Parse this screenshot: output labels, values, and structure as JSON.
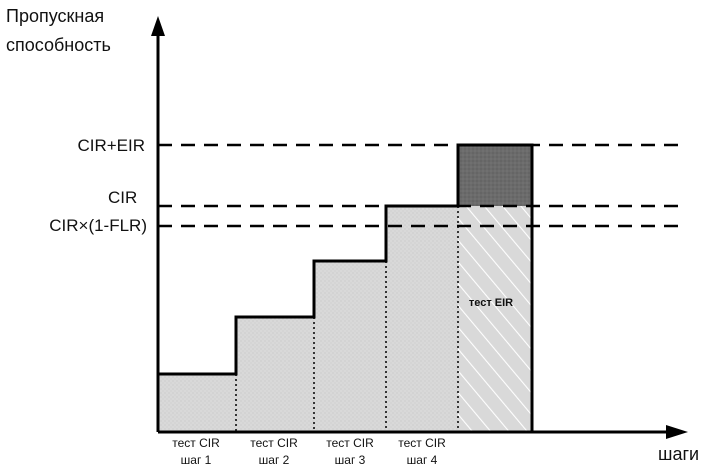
{
  "axes": {
    "y_title_line1": "Пропускная",
    "y_title_line2": "способность",
    "x_title": "шаги"
  },
  "levels": {
    "cir_eir": "CIR+EIR",
    "cir": "CIR",
    "cir_flr": "CIR×(1-FLR)"
  },
  "steps": [
    {
      "line1": "тест CIR",
      "line2": "шаг 1"
    },
    {
      "line1": "тест CIR",
      "line2": "шаг 2"
    },
    {
      "line1": "тест CIR",
      "line2": "шаг 3"
    },
    {
      "line1": "тест CIR",
      "line2": "шаг 4"
    }
  ],
  "eir_test_label": "тест EIR",
  "colors": {
    "fill": "#d9d9d9",
    "eir_excess": "#6b6b6b",
    "line": "#000000"
  }
}
